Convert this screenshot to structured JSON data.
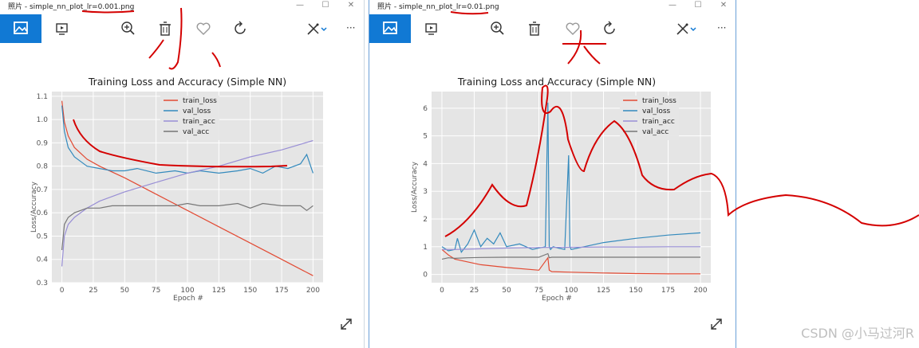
{
  "windows": [
    {
      "title": "照片 - simple_nn_plot_lr=0.001.png",
      "toolbar_icons": [
        "image-icon",
        "slideshow-icon",
        "zoom-in-icon",
        "delete-icon",
        "heart-icon",
        "rotate-icon",
        "edit-icon",
        "chevron-down-icon",
        "more-icon"
      ],
      "more_label": "···",
      "handwriting": "小"
    },
    {
      "title": "照片 - simple_nn_plot_lr=0.01.png",
      "toolbar_icons": [
        "image-icon",
        "slideshow-icon",
        "zoom-in-icon",
        "delete-icon",
        "heart-icon",
        "rotate-icon",
        "edit-icon",
        "chevron-down-icon",
        "more-icon"
      ],
      "more_label": "···",
      "handwriting": "大"
    }
  ],
  "window_controls": {
    "minimize": "—",
    "maximize": "☐",
    "close": "✕"
  },
  "colors": {
    "train_loss": "#e24a33",
    "val_loss": "#348abd",
    "train_acc": "#988ed5",
    "val_acc": "#777777",
    "accent": "#1179d4",
    "annotation": "#d40000"
  },
  "chart_data": [
    {
      "type": "line",
      "title": "Training Loss and Accuracy (Simple NN)",
      "xlabel": "Epoch #",
      "ylabel": "Loss/Accuracy",
      "xlim": [
        -8,
        208
      ],
      "ylim": [
        0.3,
        1.12
      ],
      "xticks": [
        "0",
        "25",
        "50",
        "75",
        "100",
        "125",
        "150",
        "175",
        "200"
      ],
      "yticks": [
        "0.3",
        "0.4",
        "0.5",
        "0.6",
        "0.7",
        "0.8",
        "0.9",
        "1.0",
        "1.1"
      ],
      "grid": true,
      "legend": "top-center",
      "series": [
        {
          "name": "train_loss",
          "x": [
            0,
            2,
            5,
            10,
            20,
            30,
            50,
            75,
            100,
            125,
            150,
            175,
            200
          ],
          "y": [
            1.08,
            0.99,
            0.93,
            0.88,
            0.83,
            0.8,
            0.75,
            0.68,
            0.61,
            0.54,
            0.47,
            0.4,
            0.33
          ]
        },
        {
          "name": "val_loss",
          "x": [
            0,
            2,
            5,
            10,
            15,
            20,
            30,
            40,
            50,
            60,
            75,
            90,
            100,
            110,
            125,
            140,
            150,
            160,
            170,
            180,
            190,
            195,
            200
          ],
          "y": [
            1.06,
            0.95,
            0.88,
            0.84,
            0.82,
            0.8,
            0.79,
            0.78,
            0.78,
            0.79,
            0.77,
            0.78,
            0.77,
            0.78,
            0.77,
            0.78,
            0.79,
            0.77,
            0.8,
            0.79,
            0.81,
            0.85,
            0.77
          ]
        },
        {
          "name": "train_acc",
          "x": [
            0,
            2,
            5,
            10,
            20,
            30,
            50,
            75,
            100,
            125,
            150,
            175,
            200
          ],
          "y": [
            0.37,
            0.5,
            0.55,
            0.58,
            0.62,
            0.65,
            0.69,
            0.73,
            0.77,
            0.8,
            0.84,
            0.87,
            0.91
          ]
        },
        {
          "name": "val_acc",
          "x": [
            0,
            2,
            5,
            10,
            20,
            30,
            40,
            50,
            60,
            75,
            90,
            100,
            110,
            125,
            140,
            150,
            160,
            175,
            190,
            195,
            200
          ],
          "y": [
            0.44,
            0.55,
            0.58,
            0.6,
            0.62,
            0.62,
            0.63,
            0.63,
            0.63,
            0.63,
            0.63,
            0.64,
            0.63,
            0.63,
            0.64,
            0.62,
            0.64,
            0.63,
            0.63,
            0.61,
            0.63
          ]
        }
      ]
    },
    {
      "type": "line",
      "title": "Training Loss and Accuracy (Simple NN)",
      "xlabel": "Epoch #",
      "ylabel": "Loss/Accuracy",
      "xlim": [
        -8,
        208
      ],
      "ylim": [
        -0.3,
        6.6
      ],
      "xticks": [
        "0",
        "25",
        "50",
        "75",
        "100",
        "125",
        "150",
        "175",
        "200"
      ],
      "yticks": [
        "0",
        "1",
        "2",
        "3",
        "4",
        "5",
        "6"
      ],
      "grid": true,
      "legend": "top-right",
      "series": [
        {
          "name": "train_loss",
          "x": [
            0,
            5,
            10,
            20,
            30,
            50,
            75,
            82,
            83,
            85,
            100,
            125,
            150,
            175,
            200
          ],
          "y": [
            0.9,
            0.7,
            0.55,
            0.45,
            0.35,
            0.25,
            0.15,
            0.6,
            0.15,
            0.1,
            0.08,
            0.05,
            0.03,
            0.02,
            0.02
          ]
        },
        {
          "name": "val_loss",
          "x": [
            0,
            5,
            10,
            12,
            15,
            20,
            25,
            30,
            35,
            40,
            45,
            50,
            60,
            70,
            80,
            82,
            83,
            84,
            86,
            90,
            95,
            98,
            99,
            100,
            105,
            110,
            125,
            150,
            175,
            200
          ],
          "y": [
            1.0,
            0.85,
            0.9,
            1.3,
            0.8,
            1.1,
            1.6,
            1.0,
            1.3,
            1.1,
            1.5,
            1.0,
            1.1,
            0.9,
            1.0,
            6.2,
            1.0,
            0.9,
            1.0,
            0.95,
            0.9,
            4.3,
            1.0,
            0.9,
            0.95,
            1.0,
            1.15,
            1.3,
            1.42,
            1.5
          ]
        },
        {
          "name": "train_acc",
          "x": [
            0,
            10,
            25,
            50,
            75,
            100,
            125,
            150,
            175,
            200
          ],
          "y": [
            0.9,
            0.9,
            0.92,
            0.95,
            0.97,
            0.98,
            0.99,
            0.99,
            1.0,
            1.0
          ]
        },
        {
          "name": "val_acc",
          "x": [
            0,
            5,
            10,
            20,
            30,
            50,
            75,
            82,
            83,
            85,
            100,
            125,
            150,
            175,
            200
          ],
          "y": [
            0.55,
            0.6,
            0.58,
            0.6,
            0.61,
            0.62,
            0.62,
            0.75,
            0.6,
            0.62,
            0.62,
            0.62,
            0.62,
            0.62,
            0.62
          ]
        }
      ]
    }
  ],
  "watermark": "CSDN @小马过河R"
}
